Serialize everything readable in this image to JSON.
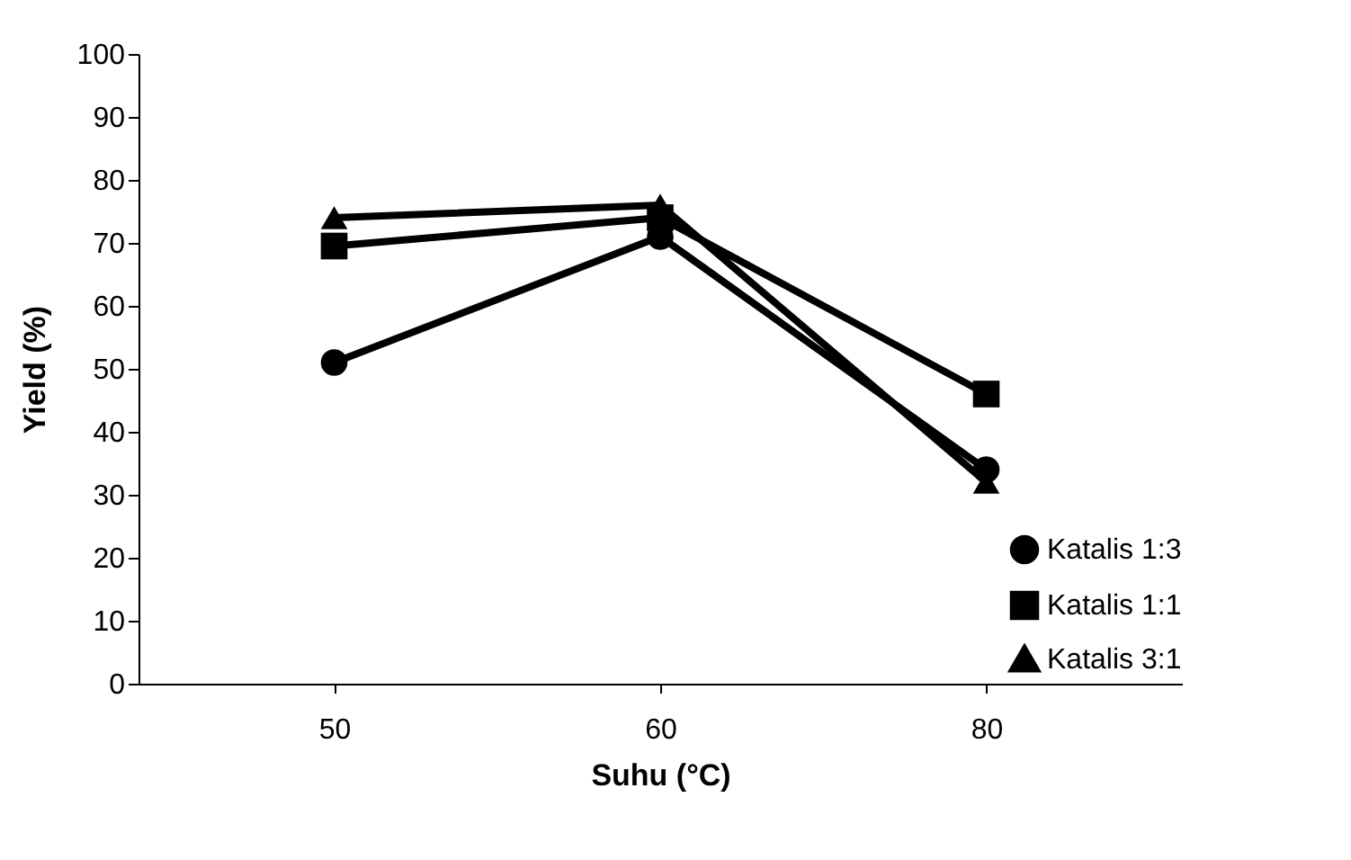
{
  "chart_data": {
    "type": "line",
    "xlabel": "Suhu (°C)",
    "ylabel": "Yield (%)",
    "categories": [
      "50",
      "60",
      "80"
    ],
    "series": [
      {
        "name": "Katalis 1:3",
        "color": "#000000",
        "marker": "circle",
        "values": [
          51,
          71,
          34
        ]
      },
      {
        "name": "Katalis 1:1",
        "color": "#000000",
        "marker": "square",
        "values": [
          69.5,
          74,
          46
        ]
      },
      {
        "name": "Katalis 3:1",
        "color": "#000000",
        "marker": "triangle",
        "values": [
          74,
          76,
          32
        ]
      }
    ],
    "ylim": [
      0,
      100
    ],
    "yticks": [
      0,
      10,
      20,
      30,
      40,
      50,
      60,
      70,
      80,
      90,
      100
    ],
    "grid": false,
    "legend": "bottom right",
    "line_style": "solid"
  }
}
